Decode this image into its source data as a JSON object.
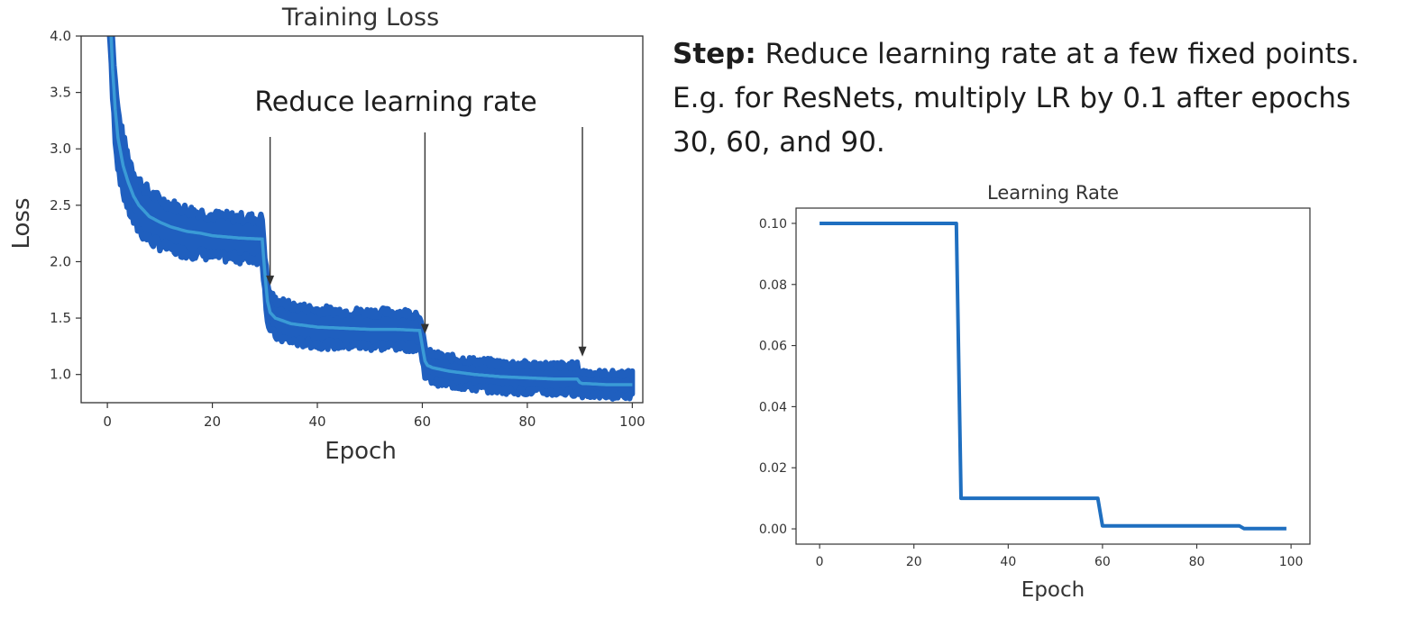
{
  "slide": {
    "step_label": "Step:",
    "step_text": " Reduce learning rate at a few fixed points.",
    "line2": "E.g. for ResNets, multiply LR by 0.1 after epochs",
    "line3": "30, 60, and 90."
  },
  "chart_data": [
    {
      "type": "line",
      "title": "Training Loss",
      "xlabel": "Epoch",
      "ylabel": "Loss",
      "xlim": [
        -5,
        102
      ],
      "ylim": [
        0.75,
        4.0
      ],
      "xticks": [
        0,
        20,
        40,
        60,
        80,
        100
      ],
      "yticks": [
        1.0,
        1.5,
        2.0,
        2.5,
        3.0,
        3.5,
        4.0
      ],
      "grid": false,
      "colors": {
        "band": "#1f5fbf",
        "mean": "#3a9bd6",
        "arrow": "#333333"
      },
      "series": [
        {
          "kind": "mean",
          "x": [
            0,
            0.5,
            1,
            1.5,
            2,
            3,
            4,
            5,
            6,
            8,
            10,
            12,
            15,
            18,
            20,
            25,
            29.5,
            30,
            30.5,
            31,
            32,
            35,
            40,
            45,
            50,
            55,
            59.5,
            60,
            60.5,
            61,
            62,
            65,
            70,
            75,
            80,
            85,
            89.5,
            90,
            90.5,
            91,
            95,
            100
          ],
          "y": [
            4.6,
            4.2,
            3.7,
            3.35,
            3.1,
            2.85,
            2.7,
            2.58,
            2.5,
            2.4,
            2.35,
            2.31,
            2.27,
            2.25,
            2.23,
            2.21,
            2.2,
            1.9,
            1.65,
            1.55,
            1.5,
            1.45,
            1.42,
            1.41,
            1.4,
            1.4,
            1.39,
            1.25,
            1.12,
            1.08,
            1.06,
            1.03,
            1.0,
            0.98,
            0.97,
            0.96,
            0.96,
            0.93,
            0.92,
            0.92,
            0.91,
            0.91
          ]
        },
        {
          "kind": "band-half-width",
          "x": [
            0,
            5,
            10,
            20,
            29.5,
            30,
            45,
            59.5,
            60,
            75,
            89.5,
            90,
            100
          ],
          "y": [
            0.25,
            0.22,
            0.2,
            0.18,
            0.18,
            0.16,
            0.15,
            0.15,
            0.12,
            0.12,
            0.12,
            0.1,
            0.1
          ]
        }
      ],
      "annotations": [
        {
          "text": "Reduce learning rate",
          "arrows_at_epochs": [
            31,
            60.5,
            90.5
          ]
        }
      ]
    },
    {
      "type": "line",
      "title": "Learning Rate",
      "xlabel": "Epoch",
      "ylabel": "",
      "xlim": [
        -5,
        104
      ],
      "ylim": [
        -0.005,
        0.105
      ],
      "xticks": [
        0,
        20,
        40,
        60,
        80,
        100
      ],
      "yticks": [
        0.0,
        0.02,
        0.04,
        0.06,
        0.08,
        0.1
      ],
      "grid": false,
      "colors": {
        "line": "#1f6fc0"
      },
      "series": [
        {
          "x": [
            0,
            29,
            30,
            59,
            60,
            89,
            90,
            99
          ],
          "y": [
            0.1,
            0.1,
            0.01,
            0.01,
            0.001,
            0.001,
            0.0001,
            0.0001
          ]
        }
      ]
    }
  ]
}
